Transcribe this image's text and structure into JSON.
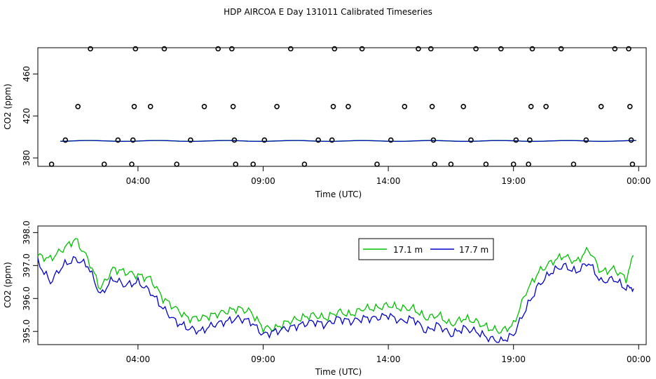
{
  "page_title": "HDP AIRCOA E  Day 131011  Calibrated Timeseries",
  "colors": {
    "s171": "#00c000",
    "s177": "#0000cc",
    "circles": "#000000"
  },
  "chart_data": [
    {
      "type": "scatter+line",
      "xlabel": "Time (UTC)",
      "ylabel": "CO2 (ppm)",
      "x_unit": "hours UTC",
      "xlim": [
        0.0,
        24.3
      ],
      "ylim": [
        372,
        485
      ],
      "x_tick_labels": [
        {
          "x": 4,
          "label": "04:00"
        },
        {
          "x": 9,
          "label": "09:00"
        },
        {
          "x": 14,
          "label": "14:00"
        },
        {
          "x": 19,
          "label": "19:00"
        },
        {
          "x": 24,
          "label": "00:00"
        }
      ],
      "y_tick_labels": [
        {
          "y": 380,
          "label": "380"
        },
        {
          "y": 420,
          "label": "420"
        },
        {
          "y": 460,
          "label": "460"
        }
      ],
      "circles": [
        {
          "x": 0.55,
          "y": 374
        },
        {
          "x": 1.1,
          "y": 397
        },
        {
          "x": 1.6,
          "y": 429
        },
        {
          "x": 2.1,
          "y": 484
        },
        {
          "x": 2.65,
          "y": 374
        },
        {
          "x": 3.2,
          "y": 397
        },
        {
          "x": 3.75,
          "y": 374
        },
        {
          "x": 3.8,
          "y": 397
        },
        {
          "x": 3.85,
          "y": 429
        },
        {
          "x": 3.9,
          "y": 484
        },
        {
          "x": 4.5,
          "y": 429
        },
        {
          "x": 5.05,
          "y": 484
        },
        {
          "x": 5.55,
          "y": 374
        },
        {
          "x": 6.1,
          "y": 397
        },
        {
          "x": 6.65,
          "y": 429
        },
        {
          "x": 7.2,
          "y": 484
        },
        {
          "x": 7.75,
          "y": 484
        },
        {
          "x": 7.8,
          "y": 429
        },
        {
          "x": 7.85,
          "y": 397
        },
        {
          "x": 7.9,
          "y": 374
        },
        {
          "x": 8.6,
          "y": 374
        },
        {
          "x": 9.05,
          "y": 397
        },
        {
          "x": 9.55,
          "y": 429
        },
        {
          "x": 10.1,
          "y": 484
        },
        {
          "x": 10.65,
          "y": 374
        },
        {
          "x": 11.2,
          "y": 397
        },
        {
          "x": 11.75,
          "y": 397
        },
        {
          "x": 11.8,
          "y": 429
        },
        {
          "x": 11.85,
          "y": 484
        },
        {
          "x": 12.4,
          "y": 429
        },
        {
          "x": 12.95,
          "y": 484
        },
        {
          "x": 13.55,
          "y": 374
        },
        {
          "x": 14.1,
          "y": 397
        },
        {
          "x": 14.65,
          "y": 429
        },
        {
          "x": 15.2,
          "y": 484
        },
        {
          "x": 15.7,
          "y": 484
        },
        {
          "x": 15.75,
          "y": 429
        },
        {
          "x": 15.8,
          "y": 397
        },
        {
          "x": 15.85,
          "y": 374
        },
        {
          "x": 16.5,
          "y": 374
        },
        {
          "x": 17.0,
          "y": 429
        },
        {
          "x": 17.3,
          "y": 397
        },
        {
          "x": 17.5,
          "y": 484
        },
        {
          "x": 17.9,
          "y": 374
        },
        {
          "x": 18.5,
          "y": 484
        },
        {
          "x": 19.0,
          "y": 374
        },
        {
          "x": 19.1,
          "y": 397
        },
        {
          "x": 19.6,
          "y": 374
        },
        {
          "x": 19.65,
          "y": 397
        },
        {
          "x": 19.7,
          "y": 429
        },
        {
          "x": 19.75,
          "y": 484
        },
        {
          "x": 20.3,
          "y": 429
        },
        {
          "x": 20.9,
          "y": 484
        },
        {
          "x": 21.4,
          "y": 374
        },
        {
          "x": 21.9,
          "y": 397
        },
        {
          "x": 22.5,
          "y": 429
        },
        {
          "x": 23.05,
          "y": 484
        },
        {
          "x": 23.6,
          "y": 484
        },
        {
          "x": 23.65,
          "y": 429
        },
        {
          "x": 23.7,
          "y": 397
        },
        {
          "x": 23.75,
          "y": 374
        }
      ],
      "line_y": 396.2
    },
    {
      "type": "line",
      "xlabel": "Time (UTC)",
      "ylabel": "CO2 (ppm)",
      "x_unit": "hours UTC",
      "xlim": [
        0.0,
        24.3
      ],
      "ylim": [
        394.6,
        398.2
      ],
      "x_tick_labels": [
        {
          "x": 4,
          "label": "04:00"
        },
        {
          "x": 9,
          "label": "09:00"
        },
        {
          "x": 14,
          "label": "14:00"
        },
        {
          "x": 19,
          "label": "19:00"
        },
        {
          "x": 24,
          "label": "00:00"
        }
      ],
      "y_tick_labels": [
        {
          "y": 395.0,
          "label": "395.0"
        },
        {
          "y": 396.0,
          "label": "396.0"
        },
        {
          "y": 397.0,
          "label": "397.0"
        },
        {
          "y": 398.0,
          "label": "398.0"
        }
      ],
      "legend": {
        "position": "top-right",
        "entries": [
          "17.1 m",
          "17.7 m"
        ]
      },
      "series": [
        {
          "name": "17.1 m",
          "color": "#00c000",
          "x": [
            0.0,
            0.5,
            1.0,
            1.5,
            2.0,
            2.5,
            3.0,
            3.5,
            4.0,
            4.5,
            5.0,
            5.5,
            6.0,
            6.5,
            7.0,
            7.5,
            8.0,
            8.5,
            9.0,
            9.5,
            10.0,
            10.5,
            11.0,
            11.5,
            12.0,
            12.5,
            13.0,
            13.5,
            14.0,
            14.5,
            15.0,
            15.5,
            16.0,
            16.5,
            17.0,
            17.5,
            18.0,
            18.5,
            19.0,
            19.5,
            20.0,
            20.5,
            21.0,
            21.5,
            22.0,
            22.5,
            23.0,
            23.5,
            23.8
          ],
          "y": [
            397.3,
            397.2,
            397.5,
            397.8,
            397.2,
            396.3,
            396.9,
            396.8,
            396.7,
            396.6,
            396.0,
            395.7,
            395.4,
            395.4,
            395.5,
            395.6,
            395.7,
            395.6,
            395.1,
            395.1,
            395.3,
            395.4,
            395.5,
            395.4,
            395.6,
            395.5,
            395.7,
            395.7,
            395.8,
            395.7,
            395.7,
            395.4,
            395.5,
            395.2,
            395.4,
            395.3,
            395.1,
            395.0,
            395.2,
            396.2,
            396.8,
            397.1,
            397.3,
            397.1,
            397.5,
            396.8,
            396.9,
            396.6,
            397.3
          ]
        },
        {
          "name": "17.7 m",
          "color": "#0000cc",
          "x": [
            0.0,
            0.5,
            1.0,
            1.5,
            2.0,
            2.5,
            3.0,
            3.5,
            4.0,
            4.5,
            5.0,
            5.5,
            6.0,
            6.5,
            7.0,
            7.5,
            8.0,
            8.5,
            9.0,
            9.5,
            10.0,
            10.5,
            11.0,
            11.5,
            12.0,
            12.5,
            13.0,
            13.5,
            14.0,
            14.5,
            15.0,
            15.5,
            16.0,
            16.5,
            17.0,
            17.5,
            18.0,
            18.5,
            19.0,
            19.5,
            20.0,
            20.5,
            21.0,
            21.5,
            22.0,
            22.5,
            23.0,
            23.5,
            23.8
          ],
          "y": [
            397.1,
            396.5,
            397.0,
            397.2,
            397.0,
            396.1,
            396.6,
            396.4,
            396.5,
            396.2,
            395.7,
            395.3,
            395.1,
            395.0,
            395.2,
            395.3,
            395.4,
            395.3,
            394.9,
            395.0,
            395.1,
            395.2,
            395.3,
            395.2,
            395.4,
            395.3,
            395.4,
            395.4,
            395.5,
            395.3,
            395.4,
            395.0,
            395.2,
            394.9,
            395.1,
            395.0,
            394.8,
            394.7,
            394.9,
            395.7,
            396.4,
            396.8,
            397.0,
            396.8,
            397.1,
            396.5,
            396.6,
            396.3,
            396.3
          ]
        }
      ]
    }
  ]
}
